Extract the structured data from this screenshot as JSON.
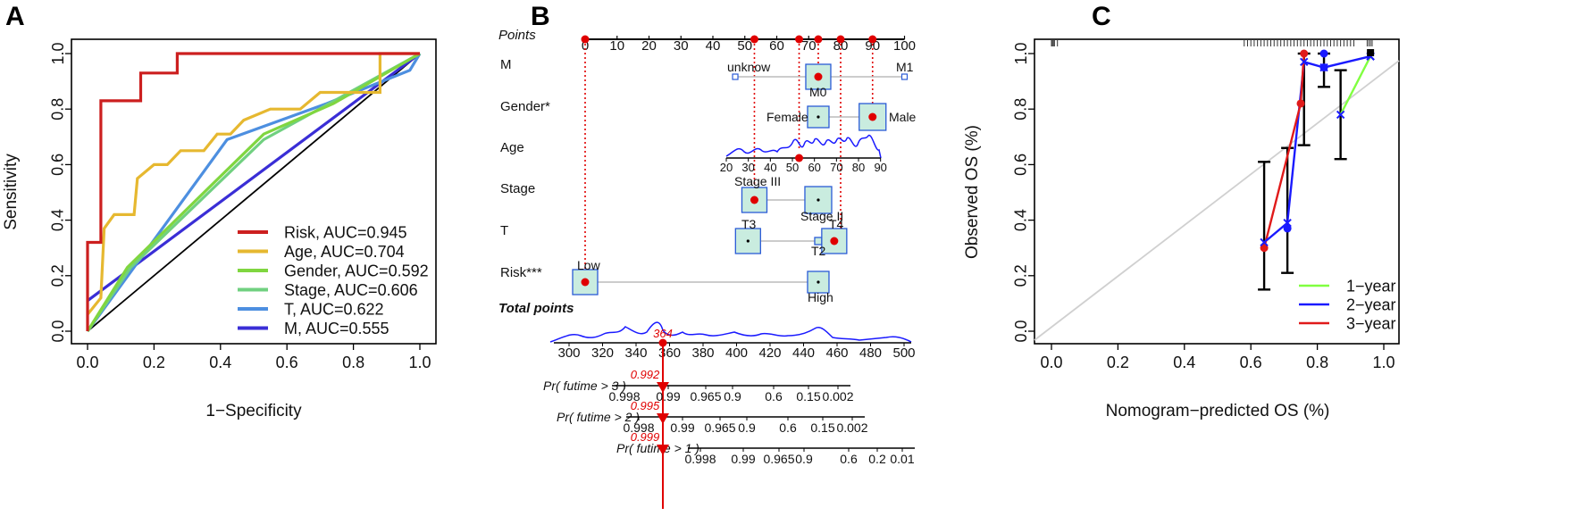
{
  "panel_letters": {
    "a": "A",
    "b": "B",
    "c": "C"
  },
  "colors": {
    "risk": "#cc1f1f",
    "age": "#e6b830",
    "gender": "#80d640",
    "stage": "#70d080",
    "t": "#4d8fe0",
    "m": "#3a2ed6",
    "one_year": "#80ff40",
    "two_year": "#1a1aff",
    "three_year": "#e01a1a",
    "red": "#e00000",
    "box_fill": "#c9ecdf",
    "box_stroke": "#2a5bd6"
  },
  "chart_data": [
    {
      "type": "line",
      "panel": "A",
      "title": "",
      "xlabel": "1−Specificity",
      "ylabel": "Sensitivity",
      "xlim": [
        0,
        1
      ],
      "ylim": [
        0,
        1
      ],
      "xticks": [
        "0.0",
        "0.2",
        "0.4",
        "0.6",
        "0.8",
        "1.0"
      ],
      "yticks": [
        "0.0",
        "0.2",
        "0.4",
        "0.6",
        "0.8",
        "1.0"
      ],
      "legend_position": "bottom-right",
      "diagonal": true,
      "series": [
        {
          "name": "Risk, AUC=0.945",
          "color": "#cc1f1f",
          "points": [
            [
              0,
              0
            ],
            [
              0,
              0.32
            ],
            [
              0.04,
              0.32
            ],
            [
              0.04,
              0.83
            ],
            [
              0.16,
              0.83
            ],
            [
              0.16,
              0.93
            ],
            [
              0.27,
              0.93
            ],
            [
              0.27,
              1.0
            ],
            [
              0.88,
              1.0
            ],
            [
              0.88,
              1.0
            ],
            [
              1,
              1
            ]
          ]
        },
        {
          "name": "Age, AUC=0.704",
          "color": "#e6b830",
          "points": [
            [
              0,
              0.06
            ],
            [
              0.04,
              0.12
            ],
            [
              0.05,
              0.37
            ],
            [
              0.08,
              0.42
            ],
            [
              0.14,
              0.42
            ],
            [
              0.15,
              0.55
            ],
            [
              0.2,
              0.6
            ],
            [
              0.24,
              0.6
            ],
            [
              0.28,
              0.65
            ],
            [
              0.35,
              0.65
            ],
            [
              0.39,
              0.71
            ],
            [
              0.43,
              0.71
            ],
            [
              0.47,
              0.76
            ],
            [
              0.55,
              0.8
            ],
            [
              0.64,
              0.8
            ],
            [
              0.7,
              0.86
            ],
            [
              0.88,
              0.86
            ],
            [
              0.88,
              1.0
            ],
            [
              1,
              1
            ]
          ]
        },
        {
          "name": "Gender, AUC=0.592",
          "color": "#80d640",
          "points": [
            [
              0,
              0
            ],
            [
              0.12,
              0.23
            ],
            [
              0.53,
              0.71
            ],
            [
              0.74,
              0.82
            ],
            [
              1,
              1
            ]
          ]
        },
        {
          "name": "Stage, AUC=0.606",
          "color": "#70d080",
          "points": [
            [
              0,
              0
            ],
            [
              0.13,
              0.23
            ],
            [
              0.53,
              0.69
            ],
            [
              1,
              1
            ]
          ]
        },
        {
          "name": "T, AUC=0.622",
          "color": "#4d8fe0",
          "points": [
            [
              0,
              0
            ],
            [
              0.42,
              0.69
            ],
            [
              0.72,
              0.82
            ],
            [
              0.97,
              0.94
            ],
            [
              1,
              1
            ]
          ]
        },
        {
          "name": "M, AUC=0.555",
          "color": "#3a2ed6",
          "points": [
            [
              0,
              0.11
            ],
            [
              1,
              1
            ]
          ]
        }
      ]
    },
    {
      "type": "nomogram",
      "panel": "B",
      "points_title": "Points",
      "points_ticks": [
        "0",
        "10",
        "20",
        "30",
        "40",
        "50",
        "60",
        "70",
        "80",
        "90",
        "100"
      ],
      "selected_points": [
        0,
        53,
        67,
        73,
        80,
        90
      ],
      "rows": [
        {
          "label": "M",
          "levels": [
            {
              "name": "unknow",
              "points": 47
            },
            {
              "name": "M0",
              "points": 73,
              "selected": true
            },
            {
              "name": "M1",
              "points": 100
            }
          ]
        },
        {
          "label": "Gender*",
          "levels": [
            {
              "name": "Female",
              "points": 73
            },
            {
              "name": "Male",
              "points": 90,
              "selected": true
            }
          ]
        },
        {
          "label": "Age",
          "ticks": [
            "20",
            "30",
            "40",
            "50",
            "60",
            "70",
            "80",
            "90"
          ],
          "selected_value": 53
        },
        {
          "label": "Stage",
          "levels": [
            {
              "name": "Stage III",
              "points": 53,
              "selected": true
            },
            {
              "name": "Stage II",
              "points": 73
            }
          ]
        },
        {
          "label": "T",
          "levels": [
            {
              "name": "T3",
              "points": 51
            },
            {
              "name": "T2",
              "points": 73
            },
            {
              "name": "T4",
              "points": 78,
              "selected": true
            }
          ]
        },
        {
          "label": "Risk***",
          "levels": [
            {
              "name": "Low",
              "points": 0,
              "selected": true
            },
            {
              "name": "High",
              "points": 73
            }
          ]
        }
      ],
      "total_points_title": "Total points",
      "total_ticks": [
        "300",
        "320",
        "340",
        "360",
        "380",
        "400",
        "420",
        "440",
        "460",
        "480",
        "500"
      ],
      "total_value": "364",
      "probabilities": [
        {
          "label": "Pr( futime > 3 )",
          "value": "0.992",
          "ticks": [
            "0.998",
            "0.99",
            "0.965",
            "0.9",
            "0.6",
            "0.15",
            "0.002"
          ]
        },
        {
          "label": "Pr( futime > 2 )",
          "value": "0.995",
          "ticks": [
            "0.998",
            "0.99",
            "0.965",
            "0.9",
            "0.6",
            "0.15",
            "0.002"
          ]
        },
        {
          "label": "Pr( futime > 1 )",
          "value": "0.999",
          "ticks": [
            "0.998",
            "0.99",
            "0.965",
            "0.9",
            "0.6",
            "0.2",
            "0.01"
          ]
        }
      ]
    },
    {
      "type": "line",
      "panel": "C",
      "title": "",
      "xlabel": "Nomogram−predicted OS (%)",
      "ylabel": "Observed OS (%)",
      "xlim": [
        0,
        1
      ],
      "ylim": [
        0,
        1
      ],
      "xticks": [
        "0.0",
        "0.2",
        "0.4",
        "0.6",
        "0.8",
        "1.0"
      ],
      "yticks": [
        "0.0",
        "0.2",
        "0.4",
        "0.6",
        "0.8",
        "1.0"
      ],
      "legend_position": "bottom-right",
      "diagonal": true,
      "series": [
        {
          "name": "1−year",
          "color": "#80ff40",
          "points": [
            [
              0.87,
              0.78
            ],
            [
              0.96,
              0.99
            ]
          ]
        },
        {
          "name": "2−year",
          "color": "#1a1aff",
          "points": [
            [
              0.64,
              0.32
            ],
            [
              0.71,
              0.39
            ],
            [
              0.76,
              0.97
            ],
            [
              0.82,
              0.95
            ],
            [
              0.96,
              0.99
            ]
          ]
        },
        {
          "name": "3−year",
          "color": "#e01a1a",
          "points": [
            [
              0.64,
              0.3
            ],
            [
              0.75,
              0.82
            ],
            [
              0.76,
              1.0
            ]
          ]
        }
      ],
      "error_bars": [
        {
          "x": 0.64,
          "low": 0.15,
          "high": 0.61
        },
        {
          "x": 0.71,
          "low": 0.21,
          "high": 0.66
        },
        {
          "x": 0.76,
          "low": 0.67,
          "high": 1.0
        },
        {
          "x": 0.82,
          "low": 0.88,
          "high": 1.0
        },
        {
          "x": 0.87,
          "low": 0.62,
          "high": 0.94
        }
      ]
    }
  ]
}
